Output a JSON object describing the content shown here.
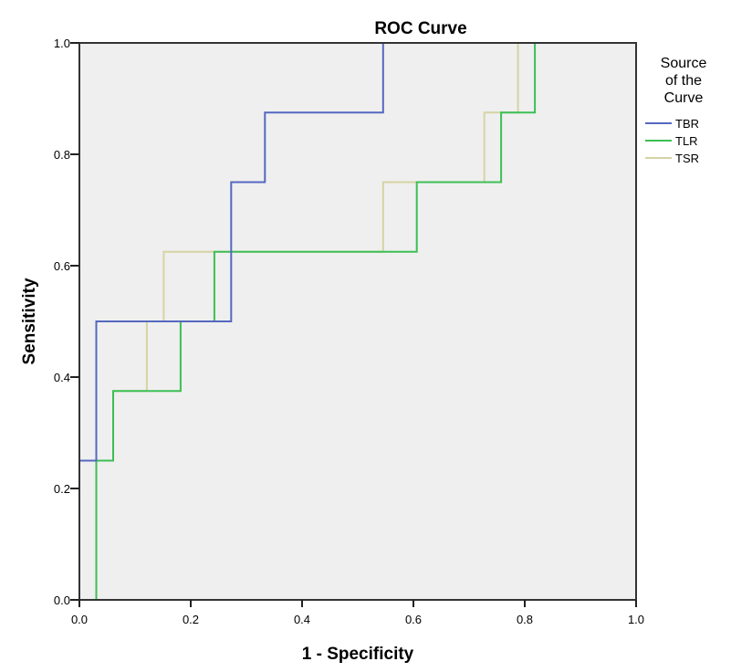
{
  "chart_data": {
    "type": "line",
    "title": "ROC Curve",
    "xlabel": "1 - Specificity",
    "ylabel": "Sensitivity",
    "xlim": [
      0,
      1
    ],
    "ylim": [
      0,
      1
    ],
    "xticks": [
      "0.0",
      "0.2",
      "0.4",
      "0.6",
      "0.8",
      "1.0"
    ],
    "yticks": [
      "0.0",
      "0.2",
      "0.4",
      "0.6",
      "0.8",
      "1.0"
    ],
    "xtick_values": [
      0,
      0.2,
      0.4,
      0.6,
      0.8,
      1.0
    ],
    "ytick_values": [
      0,
      0.2,
      0.4,
      0.6,
      0.8,
      1.0
    ],
    "grid": false,
    "background": "#efefef",
    "legend": {
      "title_lines": [
        "Source",
        "of the",
        "Curve"
      ],
      "placement": "right"
    },
    "series": [
      {
        "name": "TBR",
        "color": "#5568c0",
        "step": true,
        "x": [
          0,
          0,
          0.0303,
          0.0303,
          0.2727,
          0.2727,
          0.3333,
          0.3333,
          0.5455,
          0.5455,
          1
        ],
        "y": [
          0,
          0.25,
          0.25,
          0.5,
          0.5,
          0.75,
          0.75,
          0.875,
          0.875,
          1,
          1
        ]
      },
      {
        "name": "TLR",
        "color": "#3cbf55",
        "step": true,
        "x": [
          0,
          0.0303,
          0.0303,
          0.0606,
          0.0606,
          0.1818,
          0.1818,
          0.2424,
          0.2424,
          0.6061,
          0.6061,
          0.7576,
          0.7576,
          0.8182,
          0.8182,
          1
        ],
        "y": [
          0,
          0,
          0.25,
          0.25,
          0.375,
          0.375,
          0.5,
          0.5,
          0.625,
          0.625,
          0.75,
          0.75,
          0.875,
          0.875,
          1,
          1
        ]
      },
      {
        "name": "TSR",
        "color": "#d6d3a4",
        "step": true,
        "x": [
          0,
          0.0303,
          0.0303,
          0.0606,
          0.0606,
          0.1212,
          0.1212,
          0.1515,
          0.1515,
          0.5455,
          0.5455,
          0.7273,
          0.7273,
          0.7879,
          0.7879,
          1
        ],
        "y": [
          0,
          0,
          0.25,
          0.25,
          0.375,
          0.375,
          0.5,
          0.5,
          0.625,
          0.625,
          0.75,
          0.75,
          0.875,
          0.875,
          1,
          1
        ]
      }
    ]
  }
}
